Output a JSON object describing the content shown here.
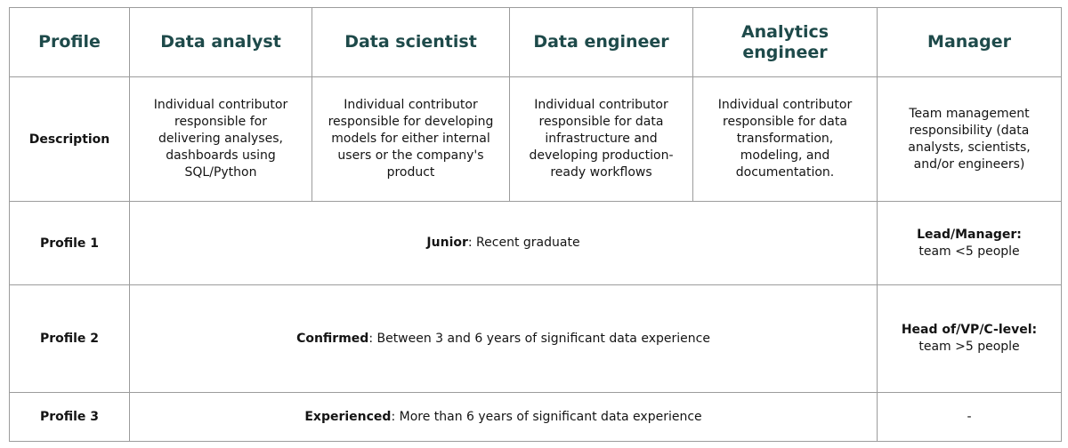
{
  "header": {
    "profile": "Profile",
    "columns": [
      "Data analyst",
      "Data scientist",
      "Data engineer",
      "Analytics engineer",
      "Manager"
    ]
  },
  "description": {
    "label": "Description",
    "cells": [
      "Individual contributor responsible for delivering analyses, dashboards using SQL/Python",
      "Individual contributor responsible for developing models for either internal users or the company's product",
      "Individual contributor responsible for data infrastructure and developing production-ready workflows",
      "Individual contributor responsible for data transformation, modeling, and documentation.",
      "Team management responsibility (data analysts, scientists, and/or engineers)"
    ]
  },
  "profile1": {
    "label": "Profile 1",
    "level": "Junior",
    "detail": ": Recent graduate",
    "manager_level": "Lead/Manager:",
    "manager_detail": "team <5 people"
  },
  "profile2": {
    "label": "Profile 2",
    "level": "Confirmed",
    "detail": ": Between 3 and 6 years of significant data experience",
    "manager_level": "Head of/VP/C-level:",
    "manager_detail": "team >5 people"
  },
  "profile3": {
    "label": "Profile 3",
    "level": "Experienced",
    "detail": ": More than 6 years of significant data experience",
    "manager_value": "-"
  }
}
